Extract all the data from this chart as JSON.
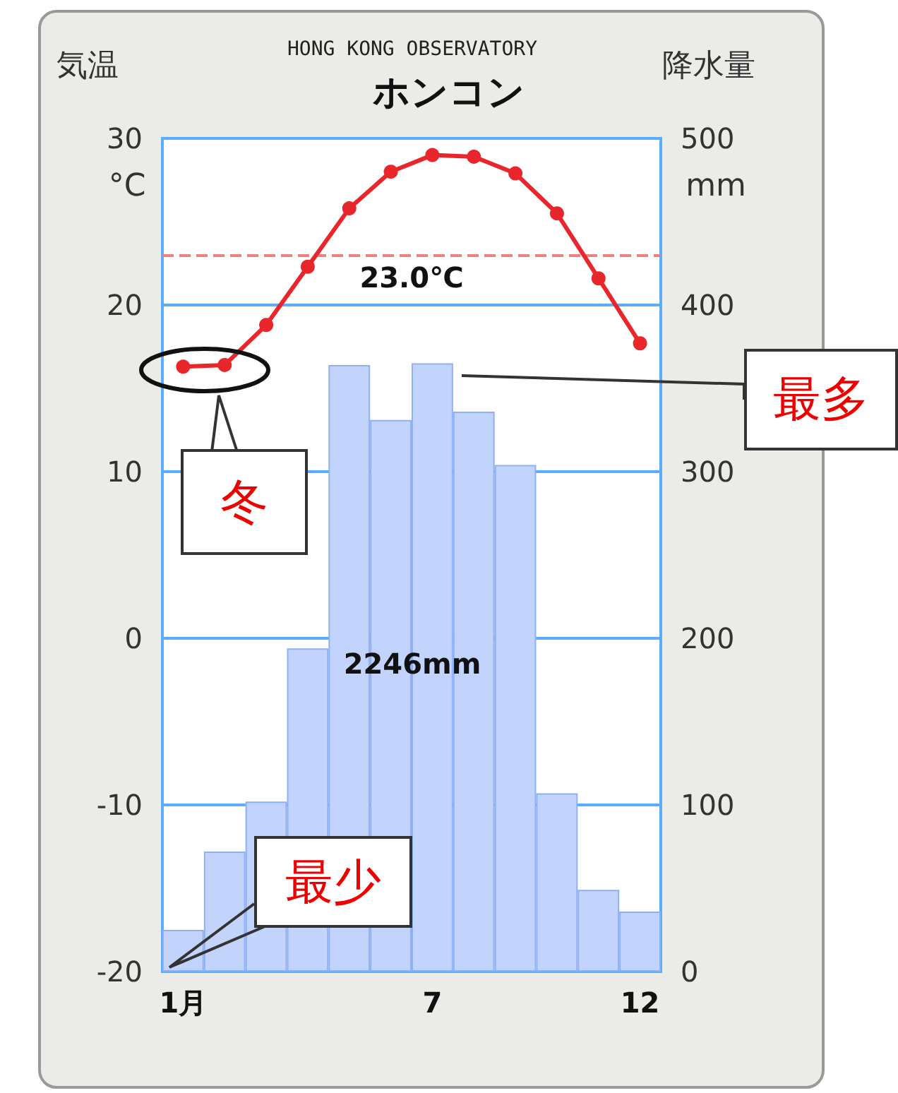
{
  "chart_data": {
    "type": "bar",
    "title": "ホンコン",
    "subtitle": "HONG KONG OBSERVATORY",
    "ylabel": "気温",
    "y2label": "降水量",
    "categories": [
      "1月",
      null,
      null,
      null,
      null,
      null,
      "7",
      null,
      null,
      null,
      null,
      "12"
    ],
    "series": [
      {
        "axis": "y2",
        "color": "#c2d4fb",
        "values": [
          25,
          72,
          102,
          194,
          364,
          331,
          365,
          336,
          304,
          107,
          49,
          36
        ]
      },
      {
        "type": "line",
        "color": "#e8262b",
        "values": [
          16.3,
          16.4,
          18.8,
          22.3,
          25.8,
          28.0,
          29.0,
          28.9,
          27.9,
          25.5,
          21.6,
          17.7
        ]
      }
    ],
    "ylim": [
      -20,
      30
    ],
    "yticks": [
      -20,
      -10,
      0,
      10,
      20,
      30
    ],
    "y2lim": [
      0,
      500
    ],
    "y2ticks": [
      0,
      100,
      200,
      300,
      400,
      500
    ],
    "ref_lines": [
      {
        "axis": "y",
        "value": 23.0,
        "label": "23.0℃",
        "color": "#f08080",
        "line_style": "dashed"
      }
    ],
    "annotations": [
      "°C",
      "mm",
      "2246mm",
      "最多",
      "冬",
      "最少"
    ],
    "grid": "y",
    "marker": "circle"
  }
}
